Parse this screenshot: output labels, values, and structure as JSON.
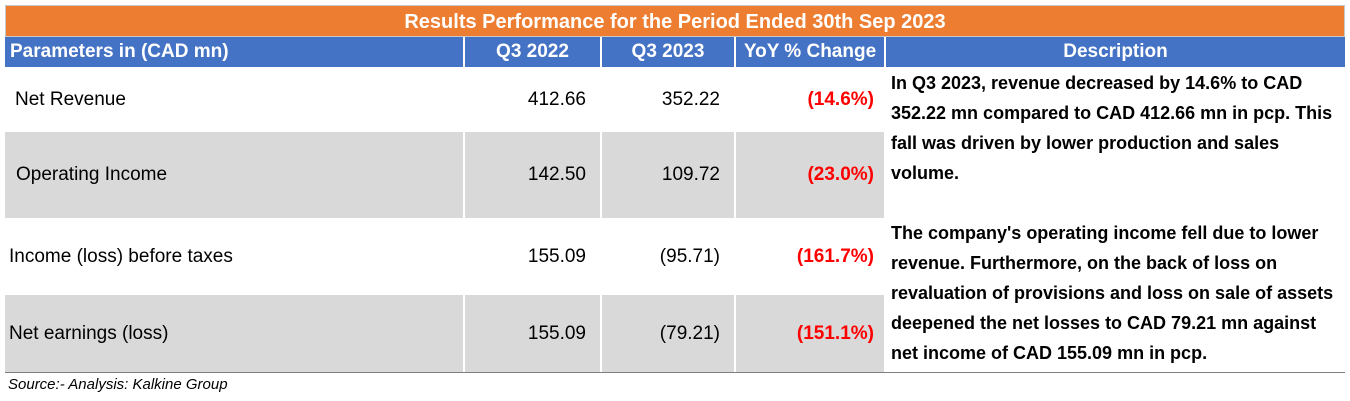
{
  "title": "Results Performance for the Period Ended 30th Sep 2023",
  "header": {
    "parameters": "Parameters in (CAD mn)",
    "q3_2022": "Q3 2022",
    "q3_2023": "Q3 2023",
    "yoy": "YoY % Change",
    "description": "Description"
  },
  "rows": [
    {
      "label": "Net Revenue",
      "q3_2022": "412.66",
      "q3_2023": "352.22",
      "yoy": "(14.6%)"
    },
    {
      "label": "Operating Income",
      "q3_2022": "142.50",
      "q3_2023": "109.72",
      "yoy": "(23.0%)"
    },
    {
      "label": "Income (loss) before taxes",
      "q3_2022": "155.09",
      "q3_2023": "(95.71)",
      "yoy": "(161.7%)"
    },
    {
      "label": "Net earnings (loss)",
      "q3_2022": "155.09",
      "q3_2023": "(79.21)",
      "yoy": "(151.1%)"
    }
  ],
  "description": {
    "paragraph1": "In Q3 2023, revenue decreased by 14.6% to CAD 352.22 mn compared to CAD 412.66 mn in pcp. This fall was driven by lower production and sales volume.",
    "paragraph2": "The company's operating income fell due to lower revenue. Furthermore, on the back of loss on revaluation of provisions and  loss on sale of assets deepened the net losses to CAD 79.21 mn against net income of CAD 155.09 mn in pcp."
  },
  "source": "Source:- Analysis: Kalkine Group",
  "colors": {
    "title_bg": "#ed7d31",
    "header_bg": "#4472c4",
    "shade": "#d9d9d9",
    "negative": "#ff0000"
  }
}
